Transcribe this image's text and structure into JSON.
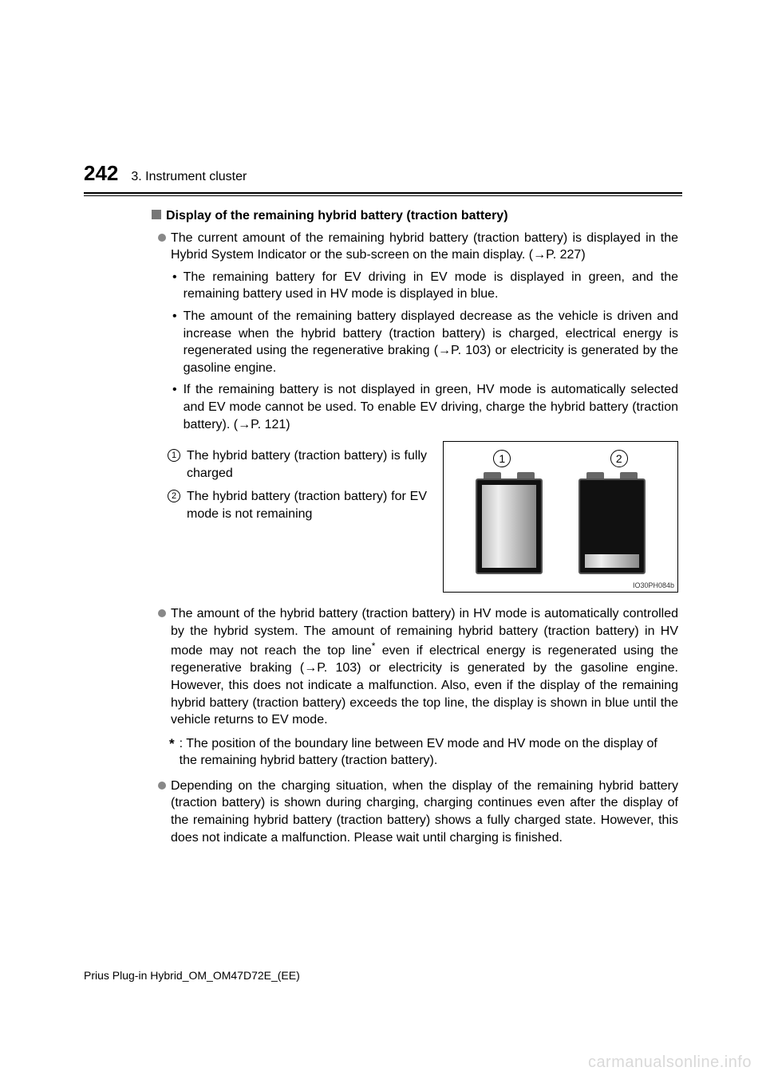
{
  "page_number": "242",
  "chapter": "3. Instrument cluster",
  "section_title": "Display of the remaining hybrid battery (traction battery)",
  "bullet1": {
    "text": "The current amount of the remaining hybrid battery (traction battery) is displayed in the Hybrid System Indicator or the sub-screen on the main display. (→P. 227)",
    "sub1": "The remaining battery for EV driving in EV mode is displayed in green, and the remaining battery used in HV mode is displayed in blue.",
    "sub2": "The amount of the remaining battery displayed decrease as the vehicle is driven and increase when the hybrid battery (traction battery) is charged, electrical energy is regenerated using the regenerative braking (→P. 103) or electricity is generated by the gasoline engine.",
    "sub3": "If the remaining battery is not displayed in green, HV mode is automatically selected and EV mode cannot be used. To enable EV driving, charge the hybrid battery (traction battery). (→P. 121)",
    "num1": "The hybrid battery (traction battery) is fully charged",
    "num2": "The hybrid battery (traction battery) for EV mode is not remaining"
  },
  "figure": {
    "label1": "1",
    "label2": "2",
    "battery1_fill_pct": 90,
    "battery2_fill_pct": 15,
    "code": "IO30PH084b"
  },
  "bullet2": {
    "main_pre": "The amount of the hybrid battery (traction battery) in HV mode is automatically controlled by the hybrid system. The amount of remaining hybrid battery (traction battery) in HV mode may not reach the top line",
    "main_post": " even if electrical energy is regenerated using the regenerative braking (→P. 103) or electricity is generated by the gasoline engine. However, this does not indicate a malfunction. Also, even if the display of the remaining hybrid battery (traction battery) exceeds the top line, the display is shown in blue until the vehicle returns to EV mode.",
    "footnote_mark": "*",
    "footnote": ": The position of the boundary line between EV mode and HV mode on the display of the remaining hybrid battery (traction battery)."
  },
  "bullet3": "Depending on the charging situation, when the display of the remaining hybrid battery (traction battery) is shown during charging, charging continues even after the display of the remaining hybrid battery (traction battery) shows a fully charged state. However, this does not indicate a malfunction. Please wait until charging is finished.",
  "footer": "Prius Plug-in Hybrid_OM_OM47D72E_(EE)",
  "watermark": "carmanualsonline.info"
}
